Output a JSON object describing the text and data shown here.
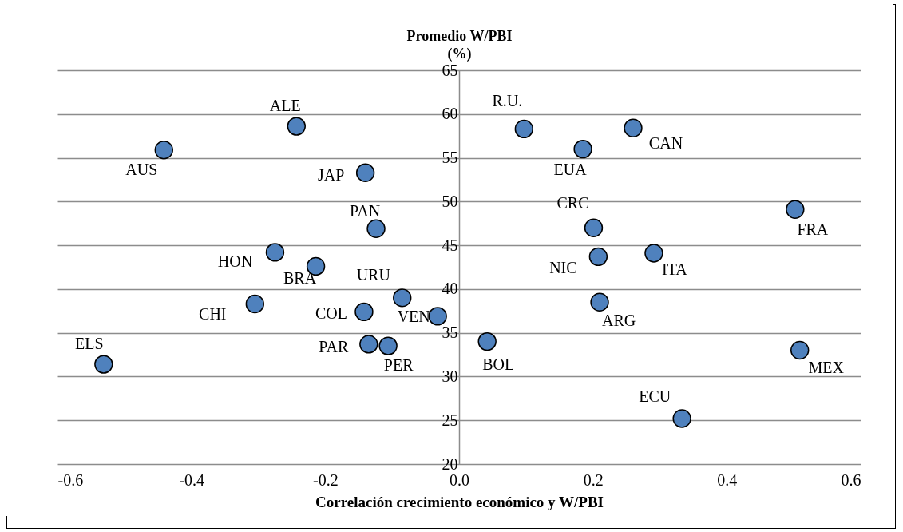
{
  "chart_data": {
    "type": "scatter",
    "ylabel": "Promedio W/PBI (%)",
    "xlabel": "Correlación crecimiento económico y W/PBI",
    "x": [
      -0.441,
      -0.243,
      -0.14,
      -0.124,
      -0.275,
      -0.214,
      -0.085,
      -0.305,
      -0.142,
      -0.032,
      -0.135,
      -0.106,
      -0.531,
      0.097,
      0.26,
      0.185,
      0.201,
      0.502,
      0.208,
      0.291,
      0.21,
      0.042,
      0.509,
      0.333
    ],
    "series": [
      {
        "color": "#4f81bd",
        "values": [
          55.9,
          58.6,
          53.3,
          46.9,
          44.2,
          42.6,
          39.0,
          38.3,
          37.4,
          36.9,
          33.7,
          33.5,
          31.4,
          58.3,
          58.4,
          56.0,
          47.0,
          49.1,
          43.7,
          44.1,
          38.5,
          34.0,
          33.0,
          25.2
        ]
      }
    ],
    "annotations": [
      {
        "text": "AUS",
        "x": -0.441,
        "y": 55.9
      },
      {
        "text": "ALE",
        "x": -0.243,
        "y": 58.6
      },
      {
        "text": "JAP",
        "x": -0.14,
        "y": 53.3
      },
      {
        "text": "PAN",
        "x": -0.124,
        "y": 46.9
      },
      {
        "text": "HON",
        "x": -0.275,
        "y": 44.2
      },
      {
        "text": "BRA",
        "x": -0.214,
        "y": 42.6
      },
      {
        "text": "URU",
        "x": -0.085,
        "y": 39.0
      },
      {
        "text": "CHI",
        "x": -0.305,
        "y": 38.3
      },
      {
        "text": "COL",
        "x": -0.142,
        "y": 37.4
      },
      {
        "text": "VEN",
        "x": -0.032,
        "y": 36.9
      },
      {
        "text": "PAR",
        "x": -0.135,
        "y": 33.7
      },
      {
        "text": "PER",
        "x": -0.106,
        "y": 33.5
      },
      {
        "text": "ELS",
        "x": -0.531,
        "y": 31.4
      },
      {
        "text": "R.U.",
        "x": 0.097,
        "y": 58.3
      },
      {
        "text": "CAN",
        "x": 0.26,
        "y": 58.4
      },
      {
        "text": "EUA",
        "x": 0.185,
        "y": 56.0
      },
      {
        "text": "CRC",
        "x": 0.201,
        "y": 47.0
      },
      {
        "text": "FRA",
        "x": 0.502,
        "y": 49.1
      },
      {
        "text": "NIC",
        "x": 0.208,
        "y": 43.7
      },
      {
        "text": "ITA",
        "x": 0.291,
        "y": 44.1
      },
      {
        "text": "ARG",
        "x": 0.21,
        "y": 38.5
      },
      {
        "text": "BOL",
        "x": 0.042,
        "y": 34.0
      },
      {
        "text": "MEX",
        "x": 0.509,
        "y": 33.0
      },
      {
        "text": "ECU",
        "x": 0.333,
        "y": 25.2
      }
    ],
    "xlim": [
      -0.6,
      0.6
    ],
    "xticks": [
      {
        "value": -0.6,
        "label": "-0.6"
      },
      {
        "value": -0.4,
        "label": "-0.4"
      },
      {
        "value": -0.2,
        "label": "-0.2"
      },
      {
        "value": 0,
        "label": "0.0"
      },
      {
        "value": 0.2,
        "label": "0.2"
      },
      {
        "value": 0.4,
        "label": "0.4"
      },
      {
        "value": 0.6,
        "label": "0.6"
      }
    ],
    "ylim": [
      20,
      65
    ],
    "yticks": [
      20,
      25,
      30,
      35,
      40,
      45,
      50,
      55,
      60,
      65
    ],
    "grid": "y",
    "marker": "circle"
  }
}
